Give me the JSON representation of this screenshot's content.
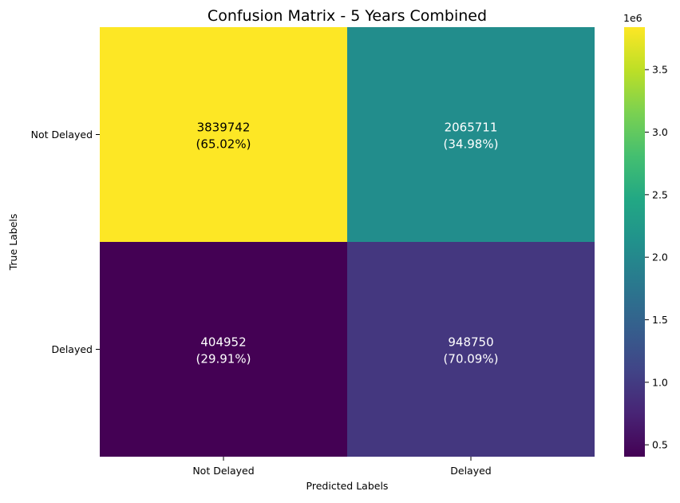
{
  "chart_data": {
    "type": "heatmap",
    "title": "Confusion Matrix - 5 Years Combined",
    "xlabel": "Predicted Labels",
    "ylabel": "True Labels",
    "x_categories": [
      "Not Delayed",
      "Delayed"
    ],
    "y_categories": [
      "Not Delayed",
      "Delayed"
    ],
    "values": [
      [
        3839742,
        2065711
      ],
      [
        404952,
        948750
      ]
    ],
    "cell_labels": [
      [
        {
          "count": "3839742",
          "percent": "(65.02%)"
        },
        {
          "count": "2065711",
          "percent": "(34.98%)"
        }
      ],
      [
        {
          "count": "404952",
          "percent": "(29.91%)"
        },
        {
          "count": "948750",
          "percent": "(70.09%)"
        }
      ]
    ],
    "colormap": "viridis",
    "colorbar": {
      "min": 404952,
      "max": 3839742,
      "ticks": [
        0.5,
        1.0,
        1.5,
        2.0,
        2.5,
        3.0,
        3.5
      ],
      "tick_labels": [
        "0.5",
        "1.0",
        "1.5",
        "2.0",
        "2.5",
        "3.0",
        "3.5"
      ],
      "multiplier_label": "1e6",
      "scale": 1000000
    },
    "text_colors": {
      "dark": "#000000",
      "light": "#ffffff"
    }
  }
}
